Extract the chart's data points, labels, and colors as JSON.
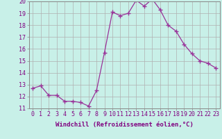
{
  "x": [
    0,
    1,
    2,
    3,
    4,
    5,
    6,
    7,
    8,
    9,
    10,
    11,
    12,
    13,
    14,
    15,
    16,
    17,
    18,
    19,
    20,
    21,
    22,
    23
  ],
  "y": [
    12.7,
    12.9,
    12.1,
    12.1,
    11.6,
    11.6,
    11.5,
    11.2,
    12.5,
    15.7,
    19.1,
    18.8,
    19.0,
    20.1,
    19.6,
    20.2,
    19.3,
    18.0,
    17.5,
    16.4,
    15.6,
    15.0,
    14.8,
    14.4
  ],
  "line_color": "#993399",
  "marker": "+",
  "marker_size": 4,
  "marker_lw": 1.0,
  "bg_color": "#c8f0e8",
  "grid_color": "#b0b0b0",
  "xlabel": "Windchill (Refroidissement éolien,°C)",
  "ylim": [
    11,
    20
  ],
  "xlim": [
    -0.5,
    23.5
  ],
  "yticks": [
    11,
    12,
    13,
    14,
    15,
    16,
    17,
    18,
    19,
    20
  ],
  "xticks": [
    0,
    1,
    2,
    3,
    4,
    5,
    6,
    7,
    8,
    9,
    10,
    11,
    12,
    13,
    14,
    15,
    16,
    17,
    18,
    19,
    20,
    21,
    22,
    23
  ],
  "xlabel_fontsize": 6.5,
  "tick_fontsize": 6.0,
  "label_color": "#800080"
}
